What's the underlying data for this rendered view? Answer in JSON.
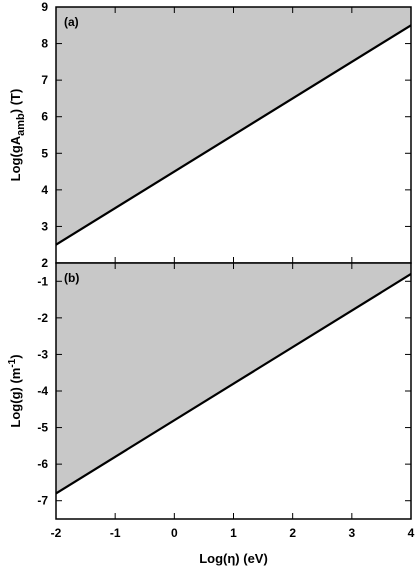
{
  "chart_data": [
    {
      "type": "area",
      "panel_label": "(a)",
      "ylabel": "Log(gA_amb) (T)",
      "ylabel_main": "Log(gA",
      "ylabel_sub": "amb",
      "ylabel_tail": ") (T)",
      "xlim": [
        -2,
        4
      ],
      "ylim": [
        2,
        9
      ],
      "x_ticks": [
        -2,
        -1,
        0,
        1,
        2,
        3,
        4
      ],
      "y_ticks": [
        2,
        3,
        4,
        5,
        6,
        7,
        8,
        9
      ],
      "y_tick_labels": [
        "2",
        "3",
        "4",
        "5",
        "6",
        "7",
        "8",
        "9"
      ],
      "series": [
        {
          "x": [
            -2,
            4
          ],
          "values": [
            2.5,
            8.5
          ]
        }
      ],
      "shaded_region": "above line",
      "colors": {
        "shade": "#c8c8c8",
        "line": "#000000"
      }
    },
    {
      "type": "area",
      "panel_label": "(b)",
      "ylabel": "Log(g) (m⁻¹)",
      "ylabel_main": "Log(g) (m",
      "ylabel_sup": "-1",
      "ylabel_tail": ")",
      "xlabel": "Log(η) (eV)",
      "xlim": [
        -2,
        4
      ],
      "ylim": [
        -7.5,
        -0.5
      ],
      "x_ticks": [
        -2,
        -1,
        0,
        1,
        2,
        3,
        4
      ],
      "x_tick_labels": [
        "-2",
        "-1",
        "0",
        "1",
        "2",
        "3",
        "4"
      ],
      "y_ticks": [
        -7,
        -6,
        -5,
        -4,
        -3,
        -2,
        -1
      ],
      "y_tick_labels": [
        "-7",
        "-6",
        "-5",
        "-4",
        "-3",
        "-2",
        "-1"
      ],
      "series": [
        {
          "x": [
            -2,
            4
          ],
          "values": [
            -6.8,
            -0.8
          ]
        }
      ],
      "shaded_region": "above line",
      "colors": {
        "shade": "#c8c8c8",
        "line": "#000000"
      }
    }
  ]
}
